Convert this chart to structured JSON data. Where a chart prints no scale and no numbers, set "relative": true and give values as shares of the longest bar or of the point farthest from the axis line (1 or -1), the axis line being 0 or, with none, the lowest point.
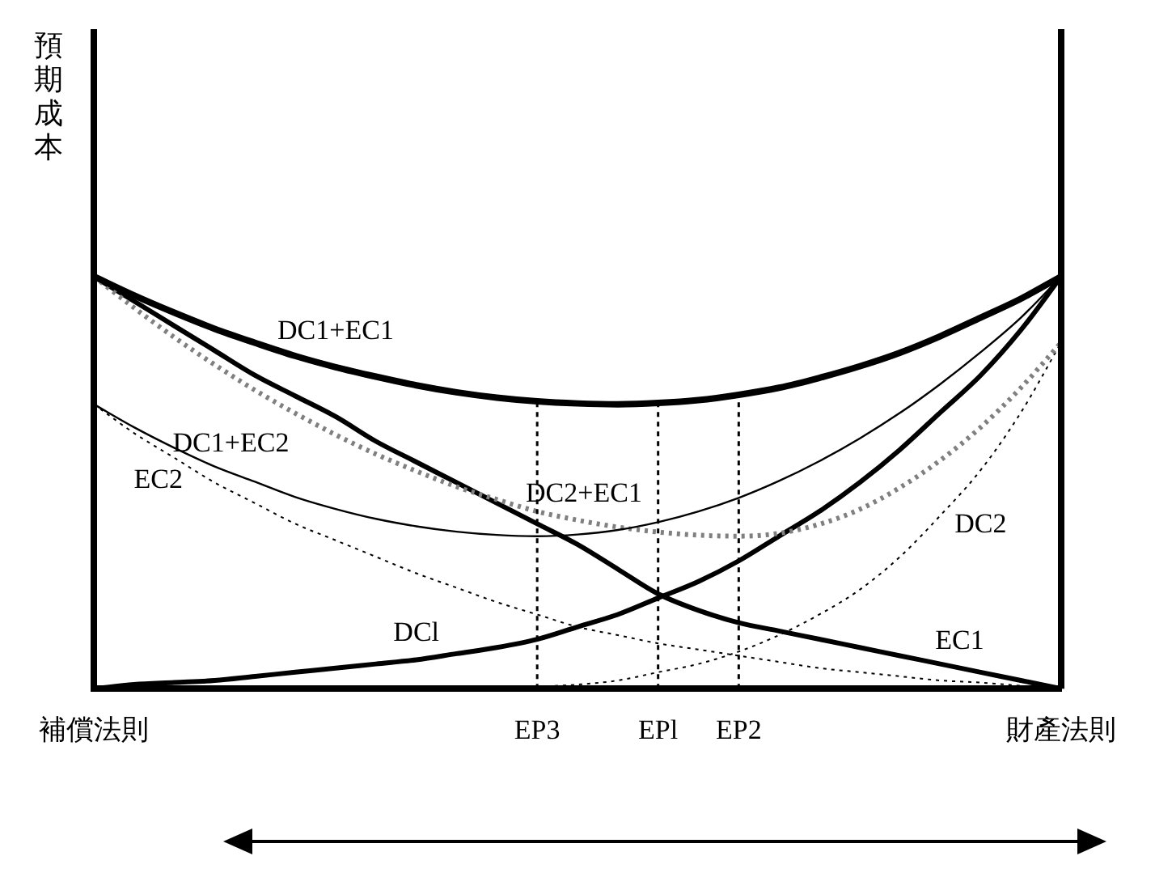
{
  "chart_data": {
    "type": "line",
    "relative": true,
    "ylabel": "預期成本",
    "legend": false,
    "grid": false,
    "marker": "none",
    "categories": [
      "補償法則",
      null,
      null,
      null,
      null,
      null,
      null,
      null,
      null,
      null,
      null,
      "EP3",
      null,
      null,
      "EPl",
      null,
      "EP2",
      null,
      null,
      null,
      null,
      null,
      null,
      null,
      "財產法則"
    ],
    "series": [
      {
        "name": "DC1+EC1",
        "color": "#000000",
        "line_style": "solid",
        "values": [
          1,
          0.954,
          0.912,
          0.873,
          0.839,
          0.807,
          0.78,
          0.757,
          0.736,
          0.719,
          0.706,
          0.697,
          0.692,
          0.69,
          0.693,
          0.7,
          0.713,
          0.73,
          0.754,
          0.782,
          0.815,
          0.855,
          0.9,
          0.946,
          1
        ]
      },
      {
        "name": "DC1+EC2",
        "color": "#000000",
        "line_style": "solid",
        "values": [
          0.69,
          0.634,
          0.584,
          0.539,
          0.502,
          0.465,
          0.436,
          0.412,
          0.394,
          0.381,
          0.373,
          0.37,
          0.374,
          0.385,
          0.404,
          0.43,
          0.463,
          0.504,
          0.552,
          0.607,
          0.669,
          0.739,
          0.816,
          0.9,
          1
        ]
      },
      {
        "name": "DC2+EC1",
        "color": "#808080",
        "line_style": "dotted",
        "values": [
          1,
          0.924,
          0.852,
          0.786,
          0.724,
          0.668,
          0.616,
          0.569,
          0.528,
          0.49,
          0.459,
          0.43,
          0.409,
          0.392,
          0.38,
          0.3725,
          0.37,
          0.377,
          0.399,
          0.435,
          0.488,
          0.554,
          0.634,
          0.73,
          0.84
        ]
      },
      {
        "name": "EC1",
        "color": "#000000",
        "line_style": "solid",
        "values": [
          1,
          0.94,
          0.88,
          0.82,
          0.76,
          0.71,
          0.66,
          0.6,
          0.55,
          0.5,
          0.45,
          0.4,
          0.35,
          0.29,
          0.23,
          0.19,
          0.16,
          0.14,
          0.12,
          0.1,
          0.08,
          0.06,
          0.04,
          0.02,
          0
        ]
      },
      {
        "name": "DCl",
        "color": "#000000",
        "line_style": "solid",
        "values": [
          0,
          0.01,
          0.015,
          0.02,
          0.03,
          0.04,
          0.05,
          0.06,
          0.07,
          0.085,
          0.1,
          0.12,
          0.15,
          0.18,
          0.22,
          0.26,
          0.31,
          0.37,
          0.43,
          0.5,
          0.58,
          0.67,
          0.76,
          0.87,
          1
        ]
      },
      {
        "name": "EC2",
        "color": "#000000",
        "line_style": "dotted",
        "values": [
          0.69,
          0.62,
          0.56,
          0.5,
          0.45,
          0.4,
          0.36,
          0.32,
          0.28,
          0.245,
          0.21,
          0.18,
          0.15,
          0.13,
          0.11,
          0.095,
          0.08,
          0.065,
          0.05,
          0.04,
          0.03,
          0.02,
          0.015,
          0.007,
          0
        ]
      },
      {
        "name": "DC2",
        "color": "#000000",
        "line_style": "dotted",
        "values": [
          0,
          0,
          0,
          0,
          0,
          0,
          0,
          0,
          0,
          0,
          0,
          0.005,
          0.01,
          0.02,
          0.04,
          0.06,
          0.09,
          0.13,
          0.18,
          0.24,
          0.32,
          0.42,
          0.53,
          0.67,
          0.84
        ]
      }
    ],
    "ref_lines": [
      {
        "axis": "x",
        "value": "EP3",
        "line_style": "dotted",
        "color": "#000000"
      },
      {
        "axis": "x",
        "value": "EPl",
        "line_style": "dotted",
        "color": "#000000"
      },
      {
        "axis": "x",
        "value": "EP2",
        "line_style": "dotted",
        "color": "#000000"
      }
    ]
  }
}
